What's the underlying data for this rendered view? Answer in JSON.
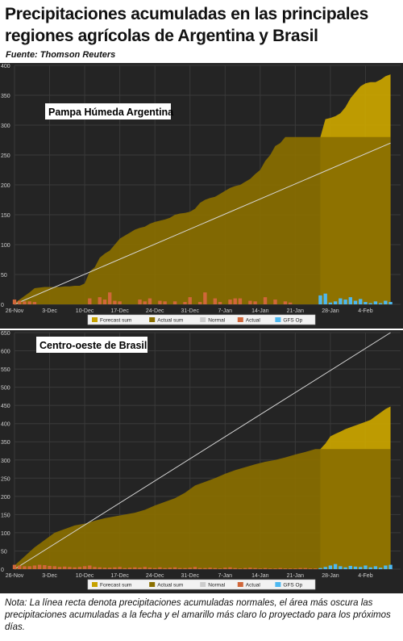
{
  "header": {
    "title": "Precipitaciones acumuladas en las principales regiones agrícolas de Argentina y Brasil",
    "source": "Fuente: Thomson Reuters"
  },
  "footer": {
    "note": "Nota: La línea recta denota precipitaciones acumuladas normales, el área más oscura las precipitaciones acumuladas a la fecha y el amarillo más claro lo proyectado para los próximos días."
  },
  "legend_items": [
    {
      "label": "Forecast sum",
      "color": "#c7a200"
    },
    {
      "label": "Actual sum",
      "color": "#8a6f00"
    },
    {
      "label": "Normal",
      "color": "#cccccc"
    },
    {
      "label": "Actual",
      "color": "#d0673a"
    },
    {
      "label": "GFS Op",
      "color": "#4db8f0"
    }
  ],
  "colors": {
    "background": "#242424",
    "grid": "#3a3a3a",
    "axis_text": "#d0d0d0",
    "forecast_sum": "#c7a200",
    "actual_sum": "#8a6f00",
    "normal": "#d8d8d8",
    "actual_bar": "#d0673a",
    "gfs_bar": "#4db8f0"
  },
  "chart_data": [
    {
      "type": "area",
      "label": "Pampa Húmeda Argentina",
      "x_unit": "day index from 26-Nov (0) to 9-Feb (75)",
      "x_tick_labels": [
        "26-Nov",
        "3-Dec",
        "10-Dec",
        "17-Dec",
        "24-Dec",
        "31-Dec",
        "7-Jan",
        "14-Jan",
        "21-Jan",
        "28-Jan",
        "4-Feb"
      ],
      "x_tick_positions": [
        0,
        7,
        14,
        21,
        28,
        35,
        42,
        49,
        56,
        63,
        70
      ],
      "ylim": [
        0,
        400
      ],
      "y_ticks": [
        0,
        50,
        100,
        150,
        200,
        250,
        300,
        350,
        400
      ],
      "grid": true,
      "legend_position": "bottom",
      "normal_line": {
        "x": [
          0,
          75
        ],
        "y": [
          0,
          270
        ]
      },
      "actual_sum": {
        "x": [
          0,
          1,
          2,
          3,
          4,
          5,
          6,
          7,
          8,
          9,
          10,
          11,
          12,
          13,
          14,
          15,
          16,
          17,
          18,
          19,
          20,
          21,
          22,
          23,
          24,
          25,
          26,
          27,
          28,
          29,
          30,
          31,
          32,
          33,
          34,
          35,
          36,
          37,
          38,
          39,
          40,
          41,
          42,
          43,
          44,
          45,
          46,
          47,
          48,
          49,
          50,
          51,
          52,
          53,
          54,
          55,
          56,
          57,
          58,
          59,
          60,
          61
        ],
        "y": [
          2,
          8,
          14,
          20,
          27,
          28,
          29,
          29,
          29,
          29,
          30,
          30,
          31,
          31,
          35,
          55,
          62,
          78,
          85,
          90,
          100,
          110,
          115,
          120,
          125,
          128,
          130,
          135,
          138,
          140,
          142,
          145,
          150,
          152,
          153,
          155,
          160,
          170,
          175,
          178,
          180,
          185,
          190,
          195,
          198,
          200,
          205,
          210,
          218,
          225,
          240,
          250,
          265,
          270,
          280,
          280,
          280,
          280,
          280,
          280,
          280,
          280
        ]
      },
      "forecast_sum": {
        "x": [
          61,
          62,
          63,
          64,
          65,
          66,
          67,
          68,
          69,
          70,
          71,
          72,
          73,
          74,
          75
        ],
        "y": [
          280,
          310,
          312,
          315,
          320,
          330,
          345,
          355,
          365,
          370,
          372,
          372,
          376,
          382,
          385
        ]
      },
      "actual_bars": {
        "x": [
          0,
          1,
          2,
          3,
          4,
          15,
          17,
          18,
          19,
          20,
          21,
          25,
          26,
          27,
          29,
          30,
          32,
          34,
          35,
          37,
          38,
          40,
          41,
          43,
          44,
          45,
          47,
          48,
          50,
          52,
          54,
          55
        ],
        "y": [
          8,
          6,
          5,
          5,
          4,
          10,
          12,
          8,
          20,
          6,
          5,
          8,
          5,
          10,
          6,
          5,
          5,
          4,
          12,
          4,
          20,
          10,
          4,
          8,
          10,
          10,
          6,
          5,
          12,
          8,
          5,
          3
        ]
      },
      "gfs_bars": {
        "x": [
          61,
          62,
          63,
          64,
          65,
          66,
          67,
          68,
          69,
          70,
          71,
          72,
          73,
          74,
          75
        ],
        "y": [
          15,
          18,
          3,
          5,
          10,
          8,
          12,
          6,
          9,
          4,
          2,
          5,
          2,
          6,
          4
        ]
      }
    },
    {
      "type": "area",
      "label": "Centro-oeste de Brasil",
      "x_unit": "day index from 26-Nov (0) to 9-Feb (75)",
      "x_tick_labels": [
        "26-Nov",
        "3-Dec",
        "10-Dec",
        "17-Dec",
        "24-Dec",
        "31-Dec",
        "7-Jan",
        "14-Jan",
        "21-Jan",
        "28-Jan",
        "4-Feb"
      ],
      "x_tick_positions": [
        0,
        7,
        14,
        21,
        28,
        35,
        42,
        49,
        56,
        63,
        70
      ],
      "ylim": [
        0,
        650
      ],
      "y_ticks": [
        0,
        50,
        100,
        150,
        200,
        250,
        300,
        350,
        400,
        450,
        500,
        550,
        600,
        650
      ],
      "grid": true,
      "legend_position": "bottom",
      "normal_line": {
        "x": [
          0,
          75
        ],
        "y": [
          0,
          650
        ]
      },
      "actual_sum": {
        "x": [
          0,
          2,
          4,
          6,
          8,
          10,
          12,
          14,
          16,
          18,
          20,
          22,
          24,
          26,
          28,
          30,
          32,
          34,
          36,
          38,
          40,
          42,
          44,
          46,
          48,
          50,
          52,
          54,
          56,
          58,
          60,
          61
        ],
        "y": [
          10,
          35,
          60,
          80,
          100,
          110,
          120,
          125,
          133,
          140,
          145,
          150,
          155,
          163,
          175,
          185,
          195,
          210,
          230,
          240,
          250,
          262,
          272,
          280,
          288,
          295,
          300,
          307,
          315,
          322,
          330,
          330
        ]
      },
      "forecast_sum": {
        "x": [
          61,
          62,
          63,
          64,
          65,
          66,
          67,
          68,
          69,
          70,
          71,
          72,
          73,
          74,
          75
        ],
        "y": [
          330,
          345,
          365,
          372,
          378,
          385,
          390,
          395,
          400,
          405,
          410,
          420,
          430,
          440,
          447
        ]
      },
      "actual_bars": {
        "x": [
          0,
          1,
          2,
          3,
          4,
          5,
          6,
          7,
          8,
          9,
          10,
          11,
          12,
          13,
          14,
          15,
          16,
          17,
          18,
          19,
          20,
          21,
          22,
          23,
          24,
          25,
          26,
          27,
          28,
          29,
          30,
          31,
          32,
          33,
          34,
          35,
          36,
          37,
          38,
          39,
          40,
          41,
          42,
          43,
          44,
          45,
          46,
          47,
          48,
          49,
          50,
          51,
          52,
          53,
          54,
          55,
          56,
          57,
          58,
          59,
          60
        ],
        "y": [
          12,
          10,
          8,
          8,
          10,
          12,
          11,
          9,
          8,
          6,
          7,
          6,
          5,
          6,
          8,
          10,
          6,
          5,
          4,
          4,
          5,
          6,
          3,
          4,
          5,
          4,
          6,
          4,
          3,
          5,
          3,
          4,
          5,
          3,
          3,
          4,
          6,
          3,
          3,
          4,
          3,
          2,
          4,
          5,
          3,
          2,
          3,
          4,
          3,
          2,
          3,
          2,
          2,
          3,
          2,
          2,
          2,
          3,
          3,
          2,
          2
        ]
      },
      "gfs_bars": {
        "x": [
          61,
          62,
          63,
          64,
          65,
          66,
          67,
          68,
          69,
          70,
          71,
          72,
          73,
          74,
          75
        ],
        "y": [
          3,
          6,
          10,
          14,
          8,
          5,
          9,
          7,
          6,
          10,
          5,
          8,
          4,
          10,
          12
        ]
      }
    }
  ]
}
